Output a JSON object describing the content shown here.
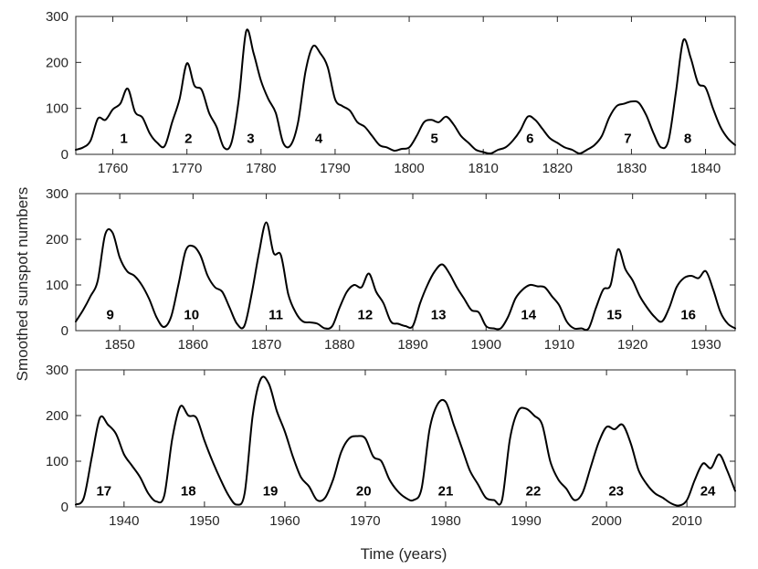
{
  "chart_data": [
    {
      "type": "line",
      "panel": "1755-1844",
      "xlim": [
        1755,
        1844
      ],
      "ylim": [
        0,
        300
      ],
      "yticks": [
        0,
        100,
        200,
        300
      ],
      "xticks": [
        1760,
        1770,
        1780,
        1790,
        1800,
        1810,
        1820,
        1830,
        1840
      ],
      "series": [
        {
          "x": [
            1755,
            1756,
            1757,
            1758,
            1759,
            1760,
            1761,
            1762,
            1763,
            1764,
            1765,
            1766,
            1767,
            1768,
            1769,
            1770,
            1771,
            1772,
            1773,
            1774,
            1775,
            1776,
            1777,
            1778,
            1779,
            1780,
            1781,
            1782,
            1783,
            1784,
            1785,
            1786,
            1787,
            1788,
            1789,
            1790,
            1791,
            1792,
            1793,
            1794,
            1795,
            1796,
            1797,
            1798,
            1799,
            1800,
            1801,
            1802,
            1803,
            1804,
            1805,
            1806,
            1807,
            1808,
            1809,
            1810,
            1811,
            1812,
            1813,
            1814,
            1815,
            1816,
            1817,
            1818,
            1819,
            1820,
            1821,
            1822,
            1823,
            1824,
            1825,
            1826,
            1827,
            1828,
            1829,
            1830,
            1831,
            1832,
            1833,
            1834,
            1835,
            1836,
            1837,
            1838,
            1839,
            1840,
            1841,
            1842,
            1843,
            1844
          ],
          "y": [
            10,
            15,
            30,
            78,
            75,
            98,
            110,
            143,
            92,
            80,
            45,
            25,
            18,
            70,
            120,
            198,
            150,
            140,
            90,
            60,
            15,
            25,
            120,
            268,
            220,
            160,
            120,
            90,
            25,
            20,
            70,
            180,
            235,
            220,
            190,
            120,
            105,
            95,
            70,
            60,
            40,
            20,
            15,
            8,
            12,
            15,
            40,
            70,
            75,
            70,
            82,
            65,
            40,
            25,
            10,
            5,
            2,
            10,
            15,
            30,
            52,
            82,
            75,
            55,
            35,
            25,
            15,
            10,
            2,
            10,
            20,
            40,
            80,
            105,
            110,
            115,
            112,
            85,
            45,
            15,
            30,
            135,
            248,
            210,
            155,
            145,
            100,
            60,
            35,
            20
          ]
        }
      ],
      "cycles": [
        {
          "label": "1",
          "x": 1761.5,
          "y": 35
        },
        {
          "label": "2",
          "x": 1770.2,
          "y": 35
        },
        {
          "label": "3",
          "x": 1778.6,
          "y": 35
        },
        {
          "label": "4",
          "x": 1787.8,
          "y": 35
        },
        {
          "label": "5",
          "x": 1803.4,
          "y": 35
        },
        {
          "label": "6",
          "x": 1816.3,
          "y": 35
        },
        {
          "label": "7",
          "x": 1829.5,
          "y": 35
        },
        {
          "label": "8",
          "x": 1837.6,
          "y": 35
        }
      ]
    },
    {
      "type": "line",
      "panel": "1844-1934",
      "xlim": [
        1844,
        1934
      ],
      "ylim": [
        0,
        300
      ],
      "yticks": [
        0,
        100,
        200,
        300
      ],
      "xticks": [
        1850,
        1860,
        1870,
        1880,
        1890,
        1900,
        1910,
        1920,
        1930
      ],
      "series": [
        {
          "x": [
            1844,
            1845,
            1846,
            1847,
            1848,
            1849,
            1850,
            1851,
            1852,
            1853,
            1854,
            1855,
            1856,
            1857,
            1858,
            1859,
            1860,
            1861,
            1862,
            1863,
            1864,
            1865,
            1866,
            1867,
            1868,
            1869,
            1870,
            1871,
            1872,
            1873,
            1874,
            1875,
            1876,
            1877,
            1878,
            1879,
            1880,
            1881,
            1882,
            1883,
            1884,
            1885,
            1886,
            1887,
            1888,
            1889,
            1890,
            1891,
            1892,
            1893,
            1894,
            1895,
            1896,
            1897,
            1898,
            1899,
            1900,
            1901,
            1902,
            1903,
            1904,
            1905,
            1906,
            1907,
            1908,
            1909,
            1910,
            1911,
            1912,
            1913,
            1914,
            1915,
            1916,
            1917,
            1918,
            1919,
            1920,
            1921,
            1922,
            1923,
            1924,
            1925,
            1926,
            1927,
            1928,
            1929,
            1930,
            1931,
            1932,
            1933,
            1934
          ],
          "y": [
            20,
            45,
            75,
            110,
            210,
            215,
            160,
            130,
            120,
            100,
            70,
            30,
            8,
            30,
            100,
            175,
            185,
            165,
            120,
            95,
            85,
            50,
            15,
            10,
            80,
            170,
            237,
            170,
            165,
            80,
            40,
            20,
            18,
            15,
            5,
            10,
            50,
            85,
            100,
            95,
            125,
            85,
            60,
            20,
            15,
            10,
            10,
            60,
            100,
            130,
            145,
            125,
            95,
            70,
            45,
            40,
            10,
            5,
            5,
            30,
            70,
            90,
            100,
            97,
            95,
            75,
            55,
            20,
            5,
            5,
            5,
            50,
            90,
            100,
            178,
            135,
            110,
            75,
            50,
            30,
            20,
            50,
            95,
            115,
            120,
            115,
            130,
            90,
            40,
            15,
            5
          ]
        }
      ],
      "cycles": [
        {
          "label": "9",
          "x": 1848.7,
          "y": 35
        },
        {
          "label": "10",
          "x": 1859.8,
          "y": 35
        },
        {
          "label": "11",
          "x": 1871.3,
          "y": 35
        },
        {
          "label": "12",
          "x": 1883.5,
          "y": 35
        },
        {
          "label": "13",
          "x": 1893.5,
          "y": 35
        },
        {
          "label": "14",
          "x": 1905.8,
          "y": 35
        },
        {
          "label": "15",
          "x": 1917.5,
          "y": 35
        },
        {
          "label": "16",
          "x": 1927.6,
          "y": 35
        }
      ]
    },
    {
      "type": "line",
      "panel": "1934-2016",
      "xlim": [
        1934,
        2016
      ],
      "ylim": [
        0,
        300
      ],
      "yticks": [
        0,
        100,
        200,
        300
      ],
      "xticks": [
        1940,
        1950,
        1960,
        1970,
        1980,
        1990,
        2000,
        2010
      ],
      "series": [
        {
          "x": [
            1934,
            1935,
            1936,
            1937,
            1938,
            1939,
            1940,
            1941,
            1942,
            1943,
            1944,
            1945,
            1946,
            1947,
            1948,
            1949,
            1950,
            1951,
            1952,
            1953,
            1954,
            1955,
            1956,
            1957,
            1958,
            1959,
            1960,
            1961,
            1962,
            1963,
            1964,
            1965,
            1966,
            1967,
            1968,
            1969,
            1970,
            1971,
            1972,
            1973,
            1974,
            1975,
            1976,
            1977,
            1978,
            1979,
            1980,
            1981,
            1982,
            1983,
            1984,
            1985,
            1986,
            1987,
            1988,
            1989,
            1990,
            1991,
            1992,
            1993,
            1994,
            1995,
            1996,
            1997,
            1998,
            1999,
            2000,
            2001,
            2002,
            2003,
            2004,
            2005,
            2006,
            2007,
            2008,
            2009,
            2010,
            2011,
            2012,
            2013,
            2014,
            2015,
            2016
          ],
          "y": [
            5,
            20,
            110,
            195,
            180,
            160,
            115,
            90,
            65,
            30,
            12,
            25,
            150,
            220,
            200,
            195,
            145,
            100,
            60,
            25,
            5,
            30,
            200,
            280,
            270,
            210,
            165,
            110,
            65,
            45,
            15,
            20,
            60,
            120,
            150,
            155,
            150,
            110,
            100,
            60,
            35,
            20,
            15,
            40,
            170,
            225,
            230,
            180,
            130,
            80,
            50,
            20,
            15,
            15,
            150,
            210,
            215,
            200,
            180,
            100,
            60,
            40,
            15,
            30,
            85,
            140,
            175,
            170,
            180,
            140,
            80,
            50,
            30,
            20,
            8,
            3,
            15,
            60,
            95,
            85,
            115,
            80,
            35
          ]
        }
      ],
      "cycles": [
        {
          "label": "17",
          "x": 1937.5,
          "y": 35
        },
        {
          "label": "18",
          "x": 1948.0,
          "y": 35
        },
        {
          "label": "19",
          "x": 1958.2,
          "y": 35
        },
        {
          "label": "20",
          "x": 1969.8,
          "y": 35
        },
        {
          "label": "21",
          "x": 1980.0,
          "y": 35
        },
        {
          "label": "22",
          "x": 1990.9,
          "y": 35
        },
        {
          "label": "23",
          "x": 2001.2,
          "y": 35
        },
        {
          "label": "24",
          "x": 2012.6,
          "y": 35
        }
      ]
    }
  ],
  "ylabel": "Smoothed sunspot numbers",
  "xlabel": "Time (years)",
  "colors": {
    "line": "#000000",
    "axes": "#262626",
    "background": "#ffffff"
  }
}
